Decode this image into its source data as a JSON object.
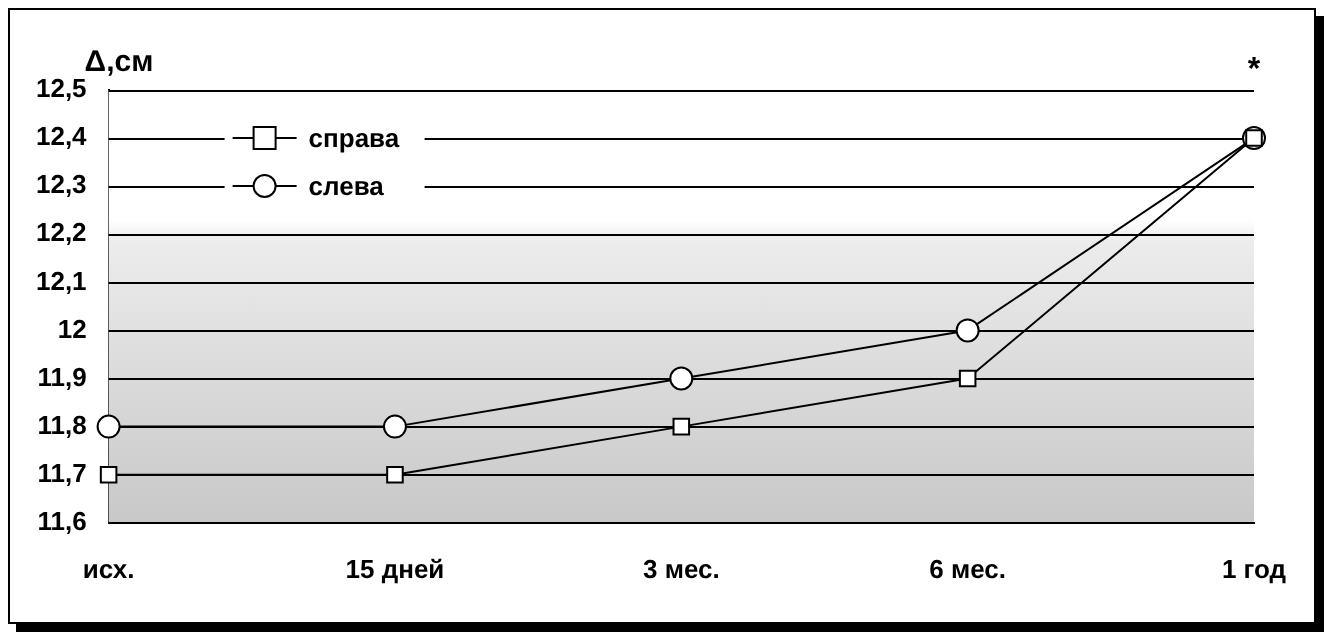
{
  "chart_data": {
    "type": "line",
    "ylabel": "Δ,см",
    "categories": [
      "исх.",
      "15 дней",
      "3 мес.",
      "6 мес.",
      "1 год"
    ],
    "series": [
      {
        "name": "справа",
        "color": "#000000",
        "marker": "square",
        "values": [
          11.7,
          11.7,
          11.8,
          11.9,
          12.4
        ]
      },
      {
        "name": "слева",
        "color": "#000000",
        "marker": "circle",
        "values": [
          11.8,
          11.8,
          11.9,
          12.0,
          12.4
        ]
      }
    ],
    "ylim": [
      11.6,
      12.5
    ],
    "yticks": [
      {
        "value": 11.6,
        "label": "11,6"
      },
      {
        "value": 11.7,
        "label": "11,7"
      },
      {
        "value": 11.8,
        "label": "11,8"
      },
      {
        "value": 11.9,
        "label": "11,9"
      },
      12,
      {
        "value": 12.1,
        "label": "12,1"
      },
      {
        "value": 12.2,
        "label": "12,2"
      },
      {
        "value": 12.3,
        "label": "12,3"
      },
      {
        "value": 12.4,
        "label": "12,4"
      },
      {
        "value": 12.5,
        "label": "12,5"
      }
    ],
    "grid": "y",
    "legend": "top left",
    "line_style": "solid",
    "annotations": [
      "*"
    ]
  }
}
